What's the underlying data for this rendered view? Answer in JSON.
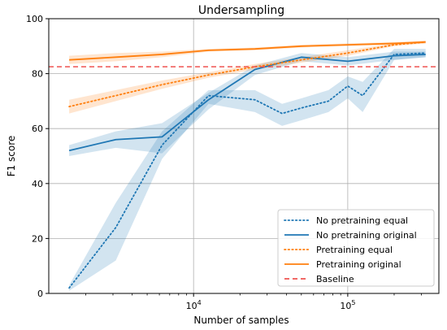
{
  "chart_data": {
    "type": "line",
    "title": "Undersampling",
    "xlabel": "Number of samples",
    "ylabel": "F1 score",
    "xscale": "log",
    "xlim": [
      1150,
      390000
    ],
    "ylim": [
      0,
      100
    ],
    "grid": true,
    "legend_position": "lower right",
    "x_major_ticks": [
      {
        "value": 10000,
        "base": "10",
        "exp": "4"
      },
      {
        "value": 100000,
        "base": "10",
        "exp": "5"
      }
    ],
    "y_ticks": [
      0,
      20,
      40,
      60,
      80,
      100
    ],
    "baseline": {
      "name": "Baseline",
      "value": 82.5,
      "color": "#ef5350",
      "style": "dashed"
    },
    "series": [
      {
        "name": "No pretraining equal",
        "color": "#1f77b4",
        "style": "dotted",
        "x": [
          1560,
          3130,
          6250,
          12500,
          25000,
          37500,
          50000,
          75000,
          100000,
          125000,
          200000,
          320000
        ],
        "y": [
          2,
          24,
          54,
          72,
          70.5,
          65.5,
          67.5,
          70,
          75.5,
          72,
          87,
          87.5
        ],
        "lower": [
          1,
          12,
          49,
          69,
          66,
          61,
          63,
          66,
          71,
          66,
          85,
          86
        ],
        "upper": [
          3,
          33,
          59,
          74,
          74,
          69,
          71,
          74,
          79,
          77,
          89,
          89
        ]
      },
      {
        "name": "No pretraining original",
        "color": "#1f77b4",
        "style": "solid",
        "x": [
          1560,
          3130,
          6250,
          12500,
          25000,
          50000,
          100000,
          200000,
          320000
        ],
        "y": [
          52,
          56,
          57,
          70.5,
          81.5,
          86,
          84.5,
          86.5,
          87
        ],
        "lower": [
          50,
          53,
          51,
          67,
          79.5,
          84.5,
          83,
          85,
          86
        ],
        "upper": [
          54,
          59,
          62,
          73,
          83,
          87.5,
          86,
          88,
          88
        ]
      },
      {
        "name": "Pretraining equal",
        "color": "#ff7f0e",
        "style": "dotted",
        "x": [
          1560,
          3130,
          6250,
          12500,
          25000,
          50000,
          100000,
          200000,
          320000
        ],
        "y": [
          68,
          72,
          76,
          79.5,
          82.5,
          85,
          87.5,
          90.5,
          91.5
        ],
        "lower": [
          65.5,
          70,
          74.5,
          78.5,
          81.5,
          84,
          86.5,
          90,
          91
        ],
        "upper": [
          70.5,
          74,
          77.5,
          80.5,
          83.5,
          86,
          88.5,
          91,
          92
        ]
      },
      {
        "name": "Pretraining original",
        "color": "#ff7f0e",
        "style": "solid",
        "x": [
          1560,
          3130,
          6250,
          12500,
          25000,
          50000,
          100000,
          200000,
          320000
        ],
        "y": [
          85,
          86,
          87,
          88.5,
          89,
          90,
          90.5,
          91,
          91.5
        ],
        "lower": [
          83.5,
          84.5,
          86,
          88,
          88.5,
          89.5,
          90,
          90.5,
          91
        ],
        "upper": [
          86.5,
          87.5,
          88,
          89,
          89.5,
          90.5,
          91,
          91.5,
          92
        ]
      }
    ]
  }
}
